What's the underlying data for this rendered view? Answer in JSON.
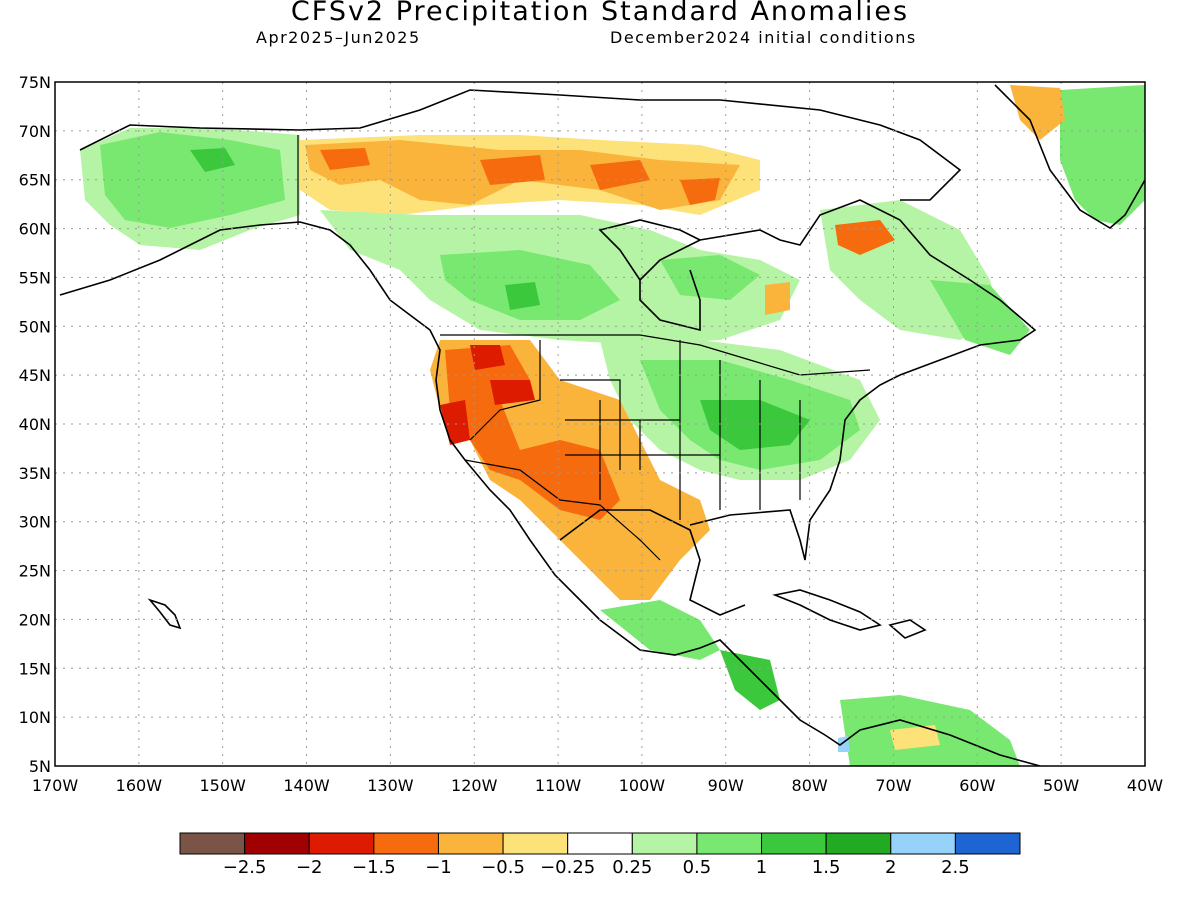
{
  "title": "CFSv2 Precipitation Standard Anomalies",
  "period": "Apr2025–Jun2025",
  "initial_conditions": "December2024 initial conditions",
  "lat_labels": [
    "75N",
    "70N",
    "65N",
    "60N",
    "55N",
    "50N",
    "45N",
    "40N",
    "35N",
    "30N",
    "25N",
    "20N",
    "15N",
    "10N",
    "5N"
  ],
  "lon_labels": [
    "170W",
    "160W",
    "150W",
    "140W",
    "130W",
    "120W",
    "110W",
    "100W",
    "90W",
    "80W",
    "70W",
    "60W",
    "50W",
    "40W"
  ],
  "colorbar": {
    "colors": [
      "#7a5446",
      "#a10000",
      "#dc1b00",
      "#f56b0e",
      "#fab43c",
      "#fde27a",
      "#ffffff",
      "#b4f4a4",
      "#78e870",
      "#3cc83c",
      "#23aa23",
      "#96d2fa",
      "#1e64d2"
    ],
    "labels": [
      "−2.5",
      "−2",
      "−1.5",
      "−1",
      "−0.5",
      "−0.25",
      "0.25",
      "0.5",
      "1",
      "1.5",
      "2",
      "2.5"
    ]
  }
}
